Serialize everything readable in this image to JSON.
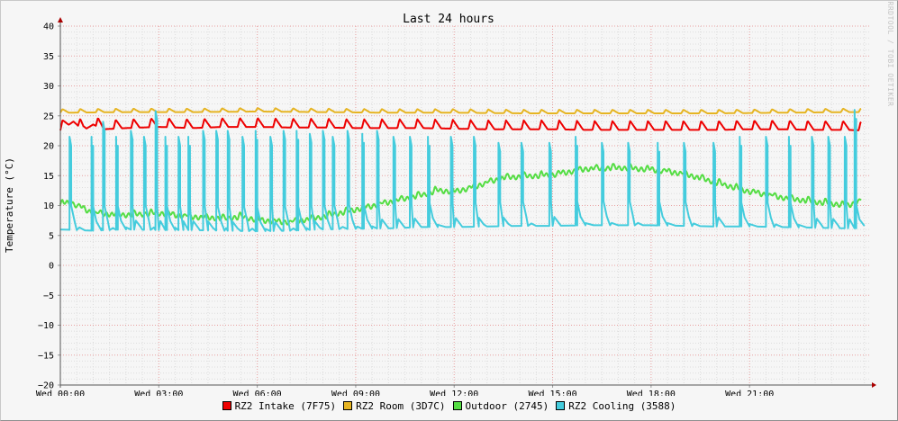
{
  "chart_data": {
    "type": "line",
    "title": "Last 24 hours",
    "ylabel": "Temperature (°C)",
    "xlabel": "",
    "credit": "RRDTOOL / TOBI OETIKER",
    "ylim": [
      -20,
      40
    ],
    "y_ticks": [
      -20,
      -15,
      -10,
      -5,
      0,
      5,
      10,
      15,
      20,
      25,
      30,
      35,
      40
    ],
    "xlim": [
      0,
      24.7
    ],
    "x_ticks": [
      {
        "value": 0,
        "label": "Wed 00:00"
      },
      {
        "value": 3,
        "label": "Wed 03:00"
      },
      {
        "value": 6,
        "label": "Wed 06:00"
      },
      {
        "value": 9,
        "label": "Wed 09:00"
      },
      {
        "value": 12,
        "label": "Wed 12:00"
      },
      {
        "value": 15,
        "label": "Wed 15:00"
      },
      {
        "value": 18,
        "label": "Wed 18:00"
      },
      {
        "value": 21,
        "label": "Wed 21:00"
      }
    ],
    "grid": true,
    "legend_position": "bottom",
    "series": [
      {
        "name": "RZ2 Intake (7F75)",
        "color": "#ee0000",
        "x": [
          0,
          0.4,
          0.7,
          1.0,
          1.3,
          2,
          3,
          4,
          5,
          6,
          7,
          8,
          9,
          10,
          11,
          12,
          13,
          14,
          15,
          16,
          17,
          18,
          19,
          20,
          21,
          22,
          23,
          24,
          24.4
        ],
        "y": [
          23.0,
          24.5,
          23.0,
          24.0,
          23.2,
          23.4,
          23.6,
          23.4,
          23.6,
          23.6,
          23.5,
          23.5,
          23.4,
          23.4,
          23.4,
          23.3,
          23.2,
          23.2,
          23.2,
          23.1,
          23.1,
          23.1,
          23.1,
          23.1,
          23.2,
          23.2,
          23.1,
          23.1,
          23.0
        ],
        "cycle_amplitude": 1.5
      },
      {
        "name": "RZ2 Room (3D7C)",
        "color": "#e6b422",
        "x": [
          0,
          2,
          4,
          6,
          8,
          10,
          12,
          14,
          16,
          18,
          20,
          22,
          24,
          24.4
        ],
        "y": [
          25.7,
          25.8,
          25.8,
          25.9,
          25.8,
          25.7,
          25.7,
          25.6,
          25.6,
          25.6,
          25.6,
          25.7,
          25.8,
          25.8
        ],
        "cycle_amplitude": 0.6
      },
      {
        "name": "Outdoor (2745)",
        "color": "#55dd44",
        "x": [
          0,
          0.3,
          1,
          2,
          3,
          4,
          5,
          5.5,
          6,
          6.5,
          7,
          8,
          9,
          10,
          11,
          11.5,
          12,
          12.5,
          13,
          13.5,
          14,
          15,
          16,
          17,
          18,
          19,
          20,
          21,
          22,
          23,
          24,
          24.4
        ],
        "y": [
          10.3,
          10.6,
          8.8,
          8.5,
          8.8,
          8.2,
          7.9,
          8.2,
          7.7,
          7.4,
          7.3,
          8.2,
          9.4,
          10.6,
          11.8,
          12.6,
          12.4,
          13.0,
          13.9,
          14.7,
          14.9,
          15.2,
          16.2,
          16.4,
          16.1,
          15.4,
          13.9,
          12.4,
          11.4,
          10.7,
          10.1,
          10.9
        ],
        "cycle_amplitude": 0.5
      },
      {
        "name": "RZ2 Cooling (3588)",
        "color": "#44ccdd",
        "baseline_x": [
          0,
          1,
          2,
          3,
          4,
          5,
          6,
          7,
          8,
          9,
          10,
          11,
          12,
          13,
          14,
          15,
          16,
          17,
          18,
          19,
          20,
          21,
          22,
          23,
          24,
          24.4
        ],
        "baseline_y": [
          6.0,
          5.8,
          6.0,
          5.9,
          5.9,
          5.8,
          5.7,
          5.8,
          6.0,
          6.1,
          6.2,
          6.4,
          6.4,
          6.5,
          6.6,
          6.6,
          6.7,
          6.7,
          6.7,
          6.6,
          6.5,
          6.5,
          6.4,
          6.3,
          6.2,
          6.2
        ],
        "spike_x": [
          0.28,
          0.95,
          1.3,
          1.7,
          2.15,
          2.55,
          2.9,
          3.2,
          3.6,
          3.9,
          4.35,
          4.75,
          5.1,
          5.55,
          5.95,
          6.4,
          6.8,
          7.2,
          7.6,
          8.0,
          8.3,
          8.75,
          9.2,
          9.65,
          10.15,
          10.65,
          11.2,
          11.9,
          12.6,
          13.35,
          14.05,
          14.9,
          15.7,
          16.5,
          17.3,
          18.2,
          19.0,
          19.9,
          20.7,
          21.5,
          22.2,
          22.9,
          23.4,
          23.9,
          24.2
        ],
        "spike_peak": [
          21.5,
          21.5,
          24.0,
          21.5,
          22.5,
          21.5,
          25.8,
          21.5,
          21.5,
          21.5,
          22.5,
          22.5,
          22.5,
          21.5,
          22.5,
          21.5,
          22.5,
          22.5,
          22.0,
          22.5,
          21.5,
          22.5,
          22.0,
          22.5,
          21.5,
          21.5,
          21.5,
          21.5,
          21.5,
          20.5,
          20.5,
          20.5,
          21.5,
          20.5,
          20.5,
          20.5,
          20.5,
          20.5,
          21.5,
          21.5,
          21.5,
          21.5,
          21.5,
          21.5,
          26.0
        ]
      }
    ]
  }
}
